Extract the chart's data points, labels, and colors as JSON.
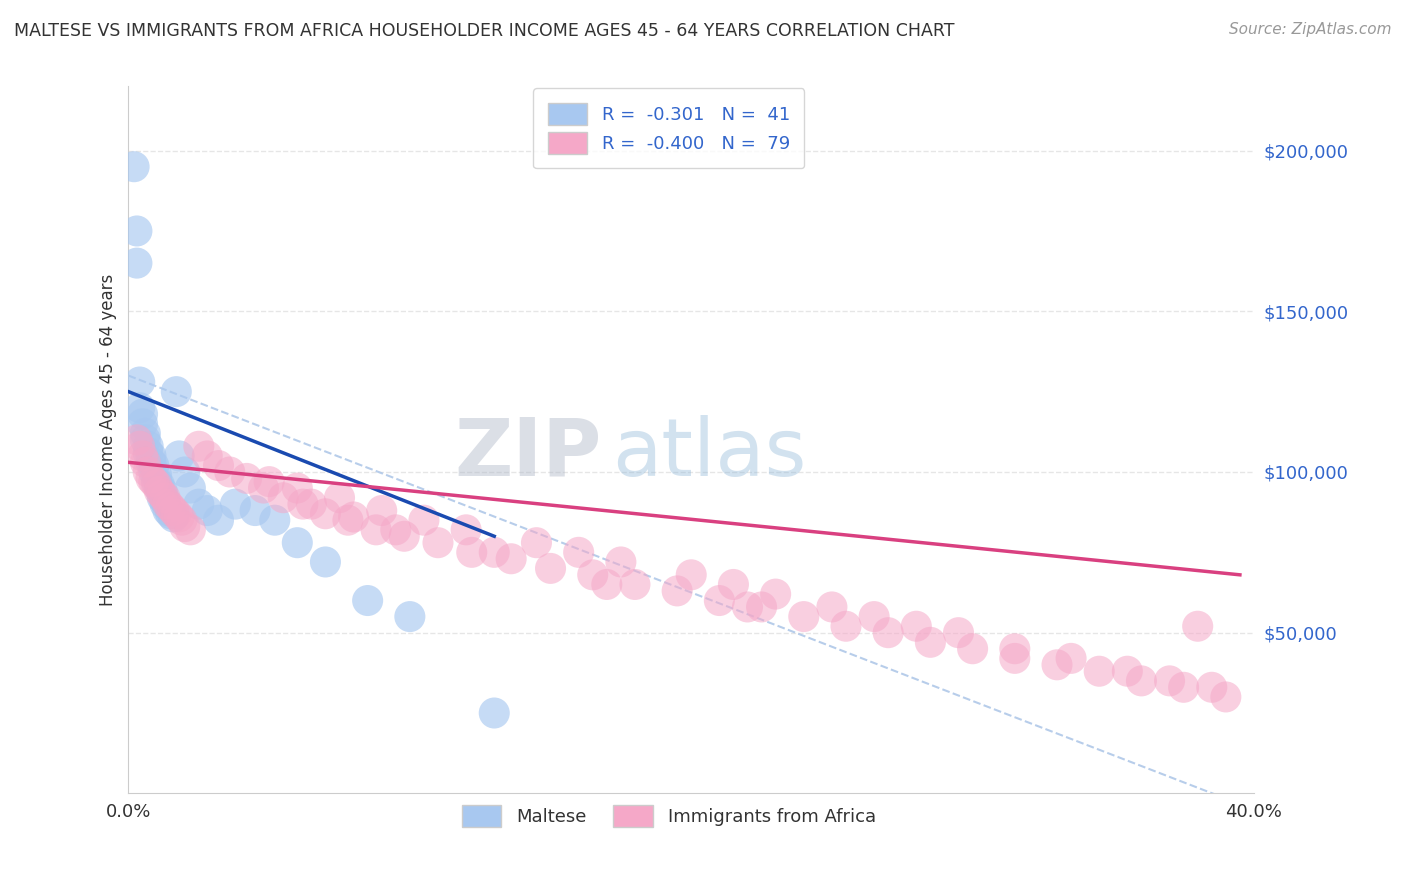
{
  "title": "MALTESE VS IMMIGRANTS FROM AFRICA HOUSEHOLDER INCOME AGES 45 - 64 YEARS CORRELATION CHART",
  "source": "Source: ZipAtlas.com",
  "ylabel": "Householder Income Ages 45 - 64 years",
  "xlim": [
    0.0,
    0.4
  ],
  "ylim": [
    0,
    220000
  ],
  "blue_color": "#a8c8f0",
  "pink_color": "#f5a8c8",
  "blue_line_color": "#1a4ab0",
  "pink_line_color": "#d94080",
  "dashed_color": "#b0c8e8",
  "blue_R": "-0.301",
  "blue_N": "41",
  "pink_R": "-0.400",
  "pink_N": "79",
  "legend_label_blue": "Maltese",
  "legend_label_pink": "Immigrants from Africa",
  "watermark_left": "ZIP",
  "watermark_right": "atlas",
  "background_color": "#ffffff",
  "grid_color": "#e0e0e0",
  "ytick_color": "#3366cc",
  "title_color": "#333333",
  "source_color": "#999999",
  "blue_scatter_x": [
    0.002,
    0.003,
    0.003,
    0.004,
    0.004,
    0.005,
    0.005,
    0.006,
    0.006,
    0.007,
    0.007,
    0.008,
    0.008,
    0.009,
    0.009,
    0.01,
    0.01,
    0.011,
    0.011,
    0.012,
    0.012,
    0.013,
    0.013,
    0.014,
    0.015,
    0.016,
    0.017,
    0.018,
    0.02,
    0.022,
    0.025,
    0.028,
    0.032,
    0.038,
    0.045,
    0.052,
    0.06,
    0.07,
    0.085,
    0.1,
    0.13
  ],
  "blue_scatter_y": [
    195000,
    175000,
    165000,
    128000,
    120000,
    118000,
    115000,
    112000,
    110000,
    108000,
    106000,
    105000,
    103000,
    102000,
    100000,
    99000,
    97000,
    96000,
    95000,
    94000,
    92000,
    91000,
    90000,
    88000,
    87000,
    86000,
    125000,
    105000,
    100000,
    95000,
    90000,
    88000,
    85000,
    90000,
    88000,
    85000,
    78000,
    72000,
    60000,
    55000,
    25000
  ],
  "pink_scatter_x": [
    0.003,
    0.004,
    0.005,
    0.006,
    0.007,
    0.008,
    0.009,
    0.01,
    0.011,
    0.012,
    0.013,
    0.014,
    0.015,
    0.016,
    0.017,
    0.018,
    0.019,
    0.02,
    0.022,
    0.025,
    0.028,
    0.032,
    0.036,
    0.042,
    0.048,
    0.055,
    0.062,
    0.07,
    0.078,
    0.088,
    0.098,
    0.11,
    0.122,
    0.136,
    0.15,
    0.165,
    0.18,
    0.195,
    0.21,
    0.225,
    0.24,
    0.255,
    0.27,
    0.285,
    0.3,
    0.315,
    0.33,
    0.345,
    0.36,
    0.375,
    0.39,
    0.06,
    0.075,
    0.09,
    0.105,
    0.12,
    0.145,
    0.16,
    0.175,
    0.2,
    0.215,
    0.23,
    0.25,
    0.265,
    0.28,
    0.295,
    0.315,
    0.335,
    0.355,
    0.37,
    0.385,
    0.05,
    0.065,
    0.08,
    0.095,
    0.13,
    0.17,
    0.22,
    0.38
  ],
  "pink_scatter_y": [
    110000,
    108000,
    105000,
    103000,
    100000,
    98000,
    97000,
    96000,
    94000,
    93000,
    92000,
    90000,
    89000,
    88000,
    87000,
    86000,
    85000,
    83000,
    82000,
    108000,
    105000,
    102000,
    100000,
    98000,
    95000,
    92000,
    90000,
    87000,
    85000,
    82000,
    80000,
    78000,
    75000,
    73000,
    70000,
    68000,
    65000,
    63000,
    60000,
    58000,
    55000,
    52000,
    50000,
    47000,
    45000,
    42000,
    40000,
    38000,
    35000,
    33000,
    30000,
    95000,
    92000,
    88000,
    85000,
    82000,
    78000,
    75000,
    72000,
    68000,
    65000,
    62000,
    58000,
    55000,
    52000,
    50000,
    45000,
    42000,
    38000,
    35000,
    33000,
    97000,
    90000,
    86000,
    82000,
    75000,
    65000,
    58000,
    52000
  ]
}
